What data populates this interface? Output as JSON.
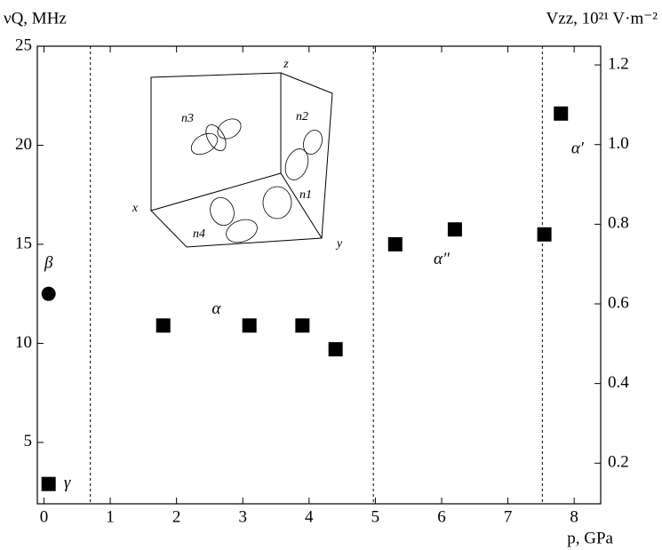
{
  "chart_data": {
    "type": "scatter",
    "ylabel": "νQ, MHz",
    "y2label": "Vzz,  10²¹ V·m⁻²",
    "xlabel": "p, GPa",
    "series": [
      {
        "marker": "square",
        "color": "#000000",
        "x": [
          0.07,
          1.8,
          3.1,
          3.9,
          4.4,
          5.3,
          6.2,
          7.55,
          7.8
        ],
        "values": [
          2.9,
          10.9,
          10.9,
          10.9,
          9.7,
          15.0,
          15.75,
          15.5,
          21.6
        ]
      },
      {
        "marker": "circle",
        "color": "#000000",
        "x": [
          0.07
        ],
        "values": [
          12.5
        ]
      }
    ],
    "vlines": [
      0.7,
      4.97,
      7.52
    ],
    "annotations": [
      "γ",
      "β",
      "α",
      "α″",
      "α′"
    ],
    "inset": {
      "axes": [
        "x",
        "y",
        "z"
      ],
      "labels": [
        "n1",
        "n2",
        "n3",
        "n4"
      ]
    },
    "xlim": [
      -0.1,
      8.4
    ],
    "xticks": [
      0,
      1,
      2,
      3,
      4,
      5,
      6,
      7,
      8
    ],
    "ylim": [
      1.9,
      25
    ],
    "yticks": [
      5,
      10,
      15,
      20,
      25
    ],
    "y2lim": [
      0.098,
      1.247
    ],
    "y2ticks": [
      0.2,
      0.4,
      0.6,
      0.8,
      {
        "value": 1.0,
        "label": "1.0"
      },
      1.2
    ]
  }
}
